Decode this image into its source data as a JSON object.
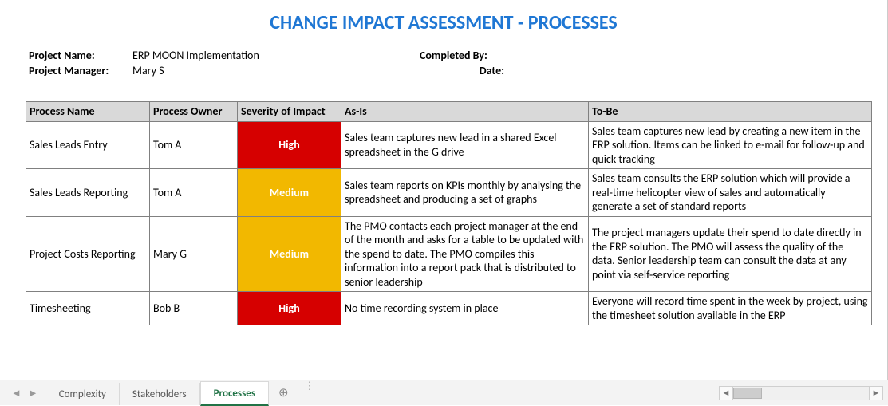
{
  "title": {
    "text": "CHANGE IMPACT ASSESSMENT - PROCESSES",
    "color": "#1f77d4"
  },
  "meta": {
    "projectNameLabel": "Project Name:",
    "projectName": "ERP MOON Implementation",
    "projectManagerLabel": "Project Manager:",
    "projectManager": "Mary S",
    "completedByLabel": "Completed By:",
    "completedBy": "",
    "dateLabel": "Date:",
    "date": ""
  },
  "table": {
    "columns": [
      "Process Name",
      "Process Owner",
      "Severity of Impact",
      "As-Is",
      "To-Be"
    ],
    "severityColors": {
      "High": "#d60000",
      "Medium": "#f2b800"
    },
    "rows": [
      {
        "process": "Sales Leads Entry",
        "owner": "Tom A",
        "severity": "High",
        "asis": "Sales team captures new lead in a shared Excel spreadsheet in the G drive",
        "tobe": "Sales team captures new lead by creating a new item in the ERP solution. Items can be linked to e-mail for follow-up and quick tracking"
      },
      {
        "process": "Sales Leads Reporting",
        "owner": "Tom A",
        "severity": "Medium",
        "asis": "Sales team reports on KPIs monthly by analysing the spreadsheet and producing a set of graphs",
        "tobe": "Sales team consults the ERP solution which will provide a real-time helicopter view of sales and automatically generate a set of standard reports"
      },
      {
        "process": "Project Costs Reporting",
        "owner": "Mary G",
        "severity": "Medium",
        "asis": "The PMO contacts each project manager at the end of the month and asks for a table to be updated with the spend to date. The PMO compiles this information into a report pack that is distributed to senior leadership",
        "tobe": "The project managers update their spend to date directly in the ERP solution. The PMO will assess the quality of the data. Senior leadership team can consult the data at any point via self-service reporting"
      },
      {
        "process": "Timesheeting",
        "owner": "Bob B",
        "severity": "High",
        "asis": "No time recording system in place",
        "tobe": "Everyone will record time spent in the week by project, using the timesheet solution available in the ERP"
      }
    ]
  },
  "tabs": {
    "items": [
      "Complexity",
      "Stakeholders",
      "Processes"
    ],
    "activeIndex": 2,
    "addLabel": "⊕"
  }
}
